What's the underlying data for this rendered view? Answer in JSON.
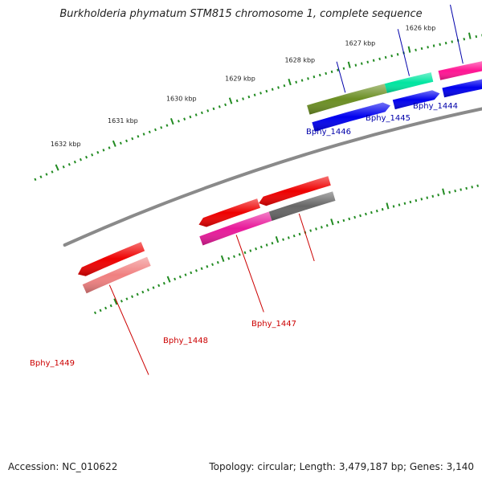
{
  "title": "Burkholderia phymatum STM815 chromosome 1, complete sequence",
  "footer": {
    "accession": "Accession: NC_010622",
    "topology": "Topology: circular; Length: 3,479,187 bp; Genes: 3,140"
  },
  "colors": {
    "backbone": "#8a8a8a",
    "tick": "#228b22",
    "label_forward": "#0000aa",
    "label_reverse": "#cc0000"
  },
  "kbp_labels": [
    "1632 kbp",
    "1631 kbp",
    "1630 kbp",
    "1629 kbp",
    "1628 kbp",
    "1627 kbp",
    "1626 kbp"
  ],
  "genes": [
    {
      "name": "Bphy_1444",
      "strand": "forward"
    },
    {
      "name": "Bphy_1445",
      "strand": "forward"
    },
    {
      "name": "Bphy_1446",
      "strand": "forward"
    },
    {
      "name": "Bphy_1447",
      "strand": "reverse"
    },
    {
      "name": "Bphy_1448",
      "strand": "reverse"
    },
    {
      "name": "Bphy_1449",
      "strand": "reverse"
    }
  ]
}
